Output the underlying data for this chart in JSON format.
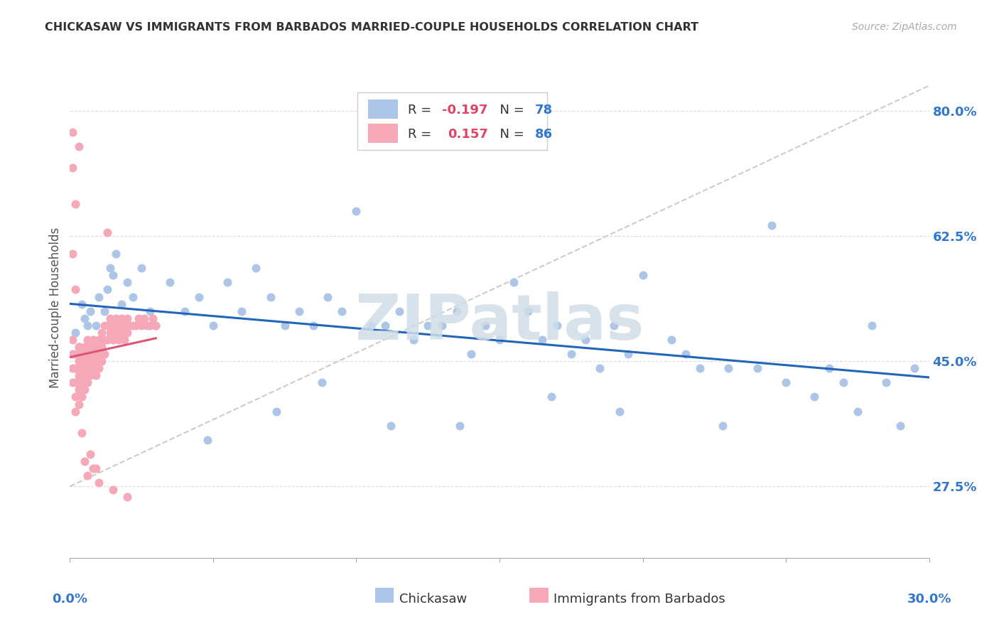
{
  "title": "CHICKASAW VS IMMIGRANTS FROM BARBADOS MARRIED-COUPLE HOUSEHOLDS CORRELATION CHART",
  "source": "Source: ZipAtlas.com",
  "ylabel_label": "Married-couple Households",
  "legend_blue_r_label": "R = ",
  "legend_blue_r_val": "-0.197",
  "legend_blue_n_label": "N = ",
  "legend_blue_n_val": "78",
  "legend_pink_r_label": "R =  ",
  "legend_pink_r_val": "0.157",
  "legend_pink_n_label": "N = ",
  "legend_pink_n_val": "86",
  "blue_color": "#adc6e8",
  "pink_color": "#f5a8b8",
  "trendline_blue_color": "#2266bb",
  "trendline_pink_color": "#dd5577",
  "trendline_diag_color": "#cccccc",
  "grid_color": "#dddddd",
  "watermark": "ZIPatlas",
  "watermark_color": "#d0dde8",
  "axis_label_color": "#3377cc",
  "title_color": "#333333",
  "source_color": "#aaaaaa",
  "ylabel_color": "#555555",
  "ytick_vals": [
    0.275,
    0.45,
    0.625,
    0.8
  ],
  "ytick_labels": [
    "27.5%",
    "45.0%",
    "62.5%",
    "80.0%"
  ],
  "xlim": [
    0.0,
    0.3
  ],
  "ylim": [
    0.175,
    0.875
  ],
  "xtick_positions": [
    0.0,
    0.05,
    0.1,
    0.15,
    0.2,
    0.25,
    0.3
  ],
  "blue_scatter_x": [
    0.002,
    0.003,
    0.004,
    0.005,
    0.006,
    0.007,
    0.008,
    0.009,
    0.01,
    0.011,
    0.012,
    0.013,
    0.014,
    0.015,
    0.016,
    0.018,
    0.02,
    0.022,
    0.025,
    0.028,
    0.03,
    0.035,
    0.04,
    0.045,
    0.05,
    0.055,
    0.06,
    0.065,
    0.07,
    0.075,
    0.08,
    0.085,
    0.09,
    0.095,
    0.1,
    0.105,
    0.11,
    0.115,
    0.12,
    0.125,
    0.13,
    0.135,
    0.14,
    0.145,
    0.15,
    0.155,
    0.16,
    0.165,
    0.17,
    0.175,
    0.18,
    0.185,
    0.19,
    0.195,
    0.2,
    0.21,
    0.215,
    0.22,
    0.23,
    0.24,
    0.245,
    0.25,
    0.26,
    0.265,
    0.27,
    0.275,
    0.28,
    0.285,
    0.29,
    0.295,
    0.048,
    0.072,
    0.088,
    0.112,
    0.136,
    0.168,
    0.192,
    0.228
  ],
  "blue_scatter_y": [
    0.49,
    0.47,
    0.53,
    0.51,
    0.5,
    0.52,
    0.48,
    0.5,
    0.54,
    0.46,
    0.52,
    0.55,
    0.58,
    0.57,
    0.6,
    0.53,
    0.56,
    0.54,
    0.58,
    0.52,
    0.5,
    0.56,
    0.52,
    0.54,
    0.5,
    0.56,
    0.52,
    0.58,
    0.54,
    0.5,
    0.52,
    0.5,
    0.54,
    0.52,
    0.66,
    0.5,
    0.5,
    0.52,
    0.48,
    0.5,
    0.5,
    0.52,
    0.46,
    0.5,
    0.48,
    0.56,
    0.52,
    0.48,
    0.5,
    0.46,
    0.48,
    0.44,
    0.5,
    0.46,
    0.57,
    0.48,
    0.46,
    0.44,
    0.44,
    0.44,
    0.64,
    0.42,
    0.4,
    0.44,
    0.42,
    0.38,
    0.5,
    0.42,
    0.36,
    0.44,
    0.34,
    0.38,
    0.42,
    0.36,
    0.36,
    0.4,
    0.38,
    0.36
  ],
  "pink_scatter_x": [
    0.001,
    0.001,
    0.001,
    0.001,
    0.002,
    0.002,
    0.002,
    0.002,
    0.002,
    0.003,
    0.003,
    0.003,
    0.003,
    0.003,
    0.004,
    0.004,
    0.004,
    0.004,
    0.005,
    0.005,
    0.005,
    0.005,
    0.006,
    0.006,
    0.006,
    0.006,
    0.007,
    0.007,
    0.007,
    0.008,
    0.008,
    0.008,
    0.009,
    0.009,
    0.009,
    0.01,
    0.01,
    0.01,
    0.011,
    0.011,
    0.011,
    0.012,
    0.012,
    0.012,
    0.013,
    0.013,
    0.014,
    0.014,
    0.015,
    0.015,
    0.016,
    0.016,
    0.017,
    0.017,
    0.018,
    0.018,
    0.019,
    0.019,
    0.02,
    0.02,
    0.021,
    0.022,
    0.023,
    0.024,
    0.025,
    0.026,
    0.027,
    0.028,
    0.029,
    0.03,
    0.001,
    0.001,
    0.002,
    0.003,
    0.013,
    0.004,
    0.005,
    0.006,
    0.007,
    0.008,
    0.009,
    0.01,
    0.015,
    0.02,
    0.001,
    0.002
  ],
  "pink_scatter_y": [
    0.48,
    0.46,
    0.44,
    0.42,
    0.46,
    0.44,
    0.42,
    0.4,
    0.38,
    0.47,
    0.45,
    0.43,
    0.41,
    0.39,
    0.46,
    0.44,
    0.42,
    0.4,
    0.47,
    0.45,
    0.43,
    0.41,
    0.48,
    0.46,
    0.44,
    0.42,
    0.47,
    0.45,
    0.43,
    0.48,
    0.46,
    0.44,
    0.47,
    0.45,
    0.43,
    0.48,
    0.46,
    0.44,
    0.49,
    0.47,
    0.45,
    0.5,
    0.48,
    0.46,
    0.5,
    0.48,
    0.51,
    0.49,
    0.5,
    0.48,
    0.51,
    0.49,
    0.5,
    0.48,
    0.51,
    0.49,
    0.5,
    0.48,
    0.51,
    0.49,
    0.5,
    0.5,
    0.5,
    0.51,
    0.5,
    0.51,
    0.5,
    0.5,
    0.51,
    0.5,
    0.77,
    0.72,
    0.67,
    0.75,
    0.63,
    0.35,
    0.31,
    0.29,
    0.32,
    0.3,
    0.3,
    0.28,
    0.27,
    0.26,
    0.6,
    0.55
  ]
}
